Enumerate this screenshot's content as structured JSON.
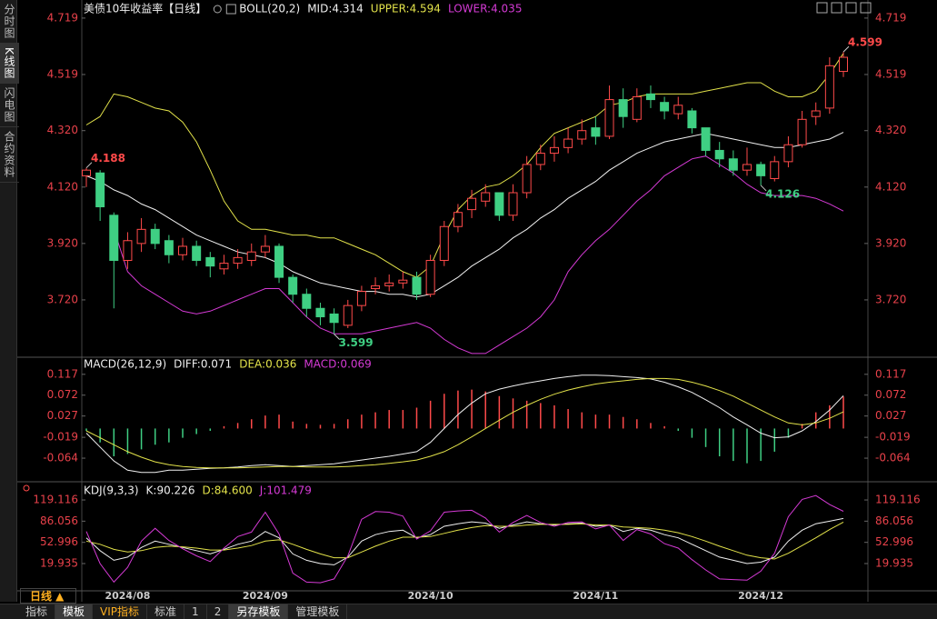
{
  "chart_data": [
    {
      "type": "candlestick",
      "title": "美债10年收益率【日线】",
      "indicator": "BOLL(20,2)",
      "up_color": "#ff4a4a",
      "down_color": "#3fcf83",
      "open": [
        4.16,
        4.17,
        4.02,
        3.86,
        3.92,
        3.97,
        3.93,
        3.88,
        3.91,
        3.87,
        3.83,
        3.85,
        3.86,
        3.89,
        3.91,
        3.8,
        3.74,
        3.69,
        3.67,
        3.63,
        3.7,
        3.76,
        3.77,
        3.78,
        3.8,
        3.74,
        3.86,
        3.98,
        4.04,
        4.07,
        4.1,
        4.02,
        4.1,
        4.2,
        4.24,
        4.26,
        4.29,
        4.33,
        4.3,
        4.43,
        4.36,
        4.45,
        4.42,
        4.38,
        4.39,
        4.33,
        4.25,
        4.22,
        4.18,
        4.2,
        4.15,
        4.21,
        4.27,
        4.37,
        4.4,
        4.53
      ],
      "high": [
        4.188,
        4.18,
        4.03,
        3.96,
        4.01,
        3.99,
        3.95,
        3.94,
        3.93,
        3.89,
        3.88,
        3.9,
        3.92,
        3.95,
        3.92,
        3.81,
        3.76,
        3.71,
        3.69,
        3.72,
        3.77,
        3.8,
        3.81,
        3.82,
        3.82,
        3.88,
        4.0,
        4.06,
        4.11,
        4.13,
        4.1,
        4.13,
        4.23,
        4.27,
        4.3,
        4.33,
        4.36,
        4.37,
        4.48,
        4.47,
        4.47,
        4.48,
        4.44,
        4.44,
        4.4,
        4.33,
        4.28,
        4.25,
        4.26,
        4.21,
        4.23,
        4.3,
        4.39,
        4.42,
        4.58,
        4.599
      ],
      "low": [
        4.12,
        4.0,
        3.69,
        3.83,
        3.89,
        3.9,
        3.85,
        3.86,
        3.84,
        3.8,
        3.81,
        3.83,
        3.84,
        3.87,
        3.78,
        3.71,
        3.66,
        3.63,
        3.599,
        3.62,
        3.68,
        3.74,
        3.75,
        3.76,
        3.72,
        3.73,
        3.84,
        3.96,
        4.01,
        4.05,
        4.0,
        4.0,
        4.08,
        4.18,
        4.21,
        4.24,
        4.27,
        4.27,
        4.29,
        4.33,
        4.35,
        4.4,
        4.36,
        4.36,
        4.31,
        4.23,
        4.19,
        4.16,
        4.16,
        4.126,
        4.14,
        4.19,
        4.26,
        4.34,
        4.38,
        4.51
      ],
      "close": [
        4.18,
        4.05,
        3.86,
        3.93,
        3.97,
        3.92,
        3.88,
        3.91,
        3.86,
        3.84,
        3.85,
        3.87,
        3.89,
        3.91,
        3.8,
        3.74,
        3.69,
        3.66,
        3.64,
        3.7,
        3.75,
        3.77,
        3.78,
        3.79,
        3.74,
        3.86,
        3.98,
        4.03,
        4.08,
        4.1,
        4.02,
        4.1,
        4.2,
        4.24,
        4.26,
        4.29,
        4.32,
        4.3,
        4.43,
        4.37,
        4.44,
        4.43,
        4.39,
        4.41,
        4.33,
        4.25,
        4.22,
        4.18,
        4.2,
        4.16,
        4.21,
        4.27,
        4.36,
        4.39,
        4.55,
        4.58
      ],
      "series": [
        {
          "name": "MID:4.314",
          "color": "#f0f0f0",
          "values": [
            4.16,
            4.14,
            4.11,
            4.09,
            4.06,
            4.04,
            4.01,
            3.98,
            3.95,
            3.93,
            3.91,
            3.89,
            3.88,
            3.87,
            3.85,
            3.82,
            3.8,
            3.78,
            3.77,
            3.76,
            3.75,
            3.75,
            3.74,
            3.74,
            3.73,
            3.74,
            3.77,
            3.8,
            3.84,
            3.87,
            3.9,
            3.94,
            3.97,
            4.01,
            4.04,
            4.08,
            4.11,
            4.14,
            4.18,
            4.21,
            4.24,
            4.26,
            4.28,
            4.29,
            4.3,
            4.31,
            4.3,
            4.29,
            4.28,
            4.27,
            4.26,
            4.26,
            4.27,
            4.28,
            4.29,
            4.314
          ]
        },
        {
          "name": "UPPER:4.594",
          "color": "#e2e24a",
          "values": [
            4.34,
            4.37,
            4.45,
            4.44,
            4.42,
            4.4,
            4.39,
            4.35,
            4.28,
            4.18,
            4.07,
            4.0,
            3.97,
            3.97,
            3.96,
            3.95,
            3.95,
            3.94,
            3.94,
            3.92,
            3.9,
            3.88,
            3.85,
            3.82,
            3.8,
            3.84,
            3.95,
            4.04,
            4.09,
            4.12,
            4.13,
            4.16,
            4.2,
            4.26,
            4.31,
            4.33,
            4.35,
            4.37,
            4.41,
            4.42,
            4.44,
            4.45,
            4.45,
            4.45,
            4.45,
            4.46,
            4.47,
            4.48,
            4.49,
            4.49,
            4.46,
            4.44,
            4.44,
            4.46,
            4.52,
            4.594
          ]
        },
        {
          "name": "LOWER:4.035",
          "color": "#d53ad5",
          "values": [
            null,
            null,
            3.97,
            3.82,
            3.77,
            3.74,
            3.71,
            3.68,
            3.67,
            3.68,
            3.7,
            3.72,
            3.74,
            3.76,
            3.76,
            3.71,
            3.66,
            3.62,
            3.6,
            3.6,
            3.6,
            3.61,
            3.62,
            3.63,
            3.64,
            3.62,
            3.58,
            3.55,
            3.53,
            3.53,
            3.56,
            3.59,
            3.62,
            3.66,
            3.72,
            3.82,
            3.88,
            3.93,
            3.97,
            4.02,
            4.07,
            4.11,
            4.16,
            4.19,
            4.22,
            4.23,
            4.2,
            4.17,
            4.13,
            4.1,
            4.09,
            4.09,
            4.09,
            4.08,
            4.06,
            4.035
          ]
        }
      ],
      "annotations": [
        {
          "label": "4.188",
          "value": 4.188
        },
        {
          "label": "4.599",
          "value": 4.599
        },
        {
          "label": "3.599",
          "value": 3.599
        },
        {
          "label": "4.126",
          "value": 4.126
        }
      ],
      "ylim": [
        3.52,
        4.767
      ],
      "yticks": [
        {
          "value": 3.72,
          "label": "3.720"
        },
        {
          "value": 3.92,
          "label": "3.920"
        },
        {
          "value": 4.12,
          "label": "4.120"
        },
        {
          "value": 4.32,
          "label": "4.320"
        },
        {
          "value": 4.519,
          "label": "4.519"
        },
        {
          "value": 4.719,
          "label": "4.719"
        }
      ]
    },
    {
      "type": "combo",
      "title": "MACD(26,12,9)",
      "series": [
        {
          "name": "DIFF:0.071",
          "color": "#f0f0f0",
          "values": [
            -0.01,
            -0.04,
            -0.07,
            -0.09,
            -0.095,
            -0.095,
            -0.09,
            -0.09,
            -0.088,
            -0.086,
            -0.085,
            -0.083,
            -0.08,
            -0.078,
            -0.08,
            -0.082,
            -0.08,
            -0.078,
            -0.076,
            -0.072,
            -0.068,
            -0.064,
            -0.06,
            -0.055,
            -0.05,
            -0.03,
            0.0,
            0.03,
            0.055,
            0.075,
            0.085,
            0.092,
            0.098,
            0.103,
            0.108,
            0.112,
            0.115,
            0.115,
            0.114,
            0.112,
            0.11,
            0.107,
            0.1,
            0.09,
            0.078,
            0.062,
            0.045,
            0.025,
            0.008,
            -0.01,
            -0.02,
            -0.018,
            -0.005,
            0.015,
            0.04,
            0.071
          ]
        },
        {
          "name": "DEA:0.036",
          "color": "#e2e24a",
          "values": [
            -0.005,
            -0.02,
            -0.035,
            -0.05,
            -0.062,
            -0.072,
            -0.078,
            -0.082,
            -0.084,
            -0.085,
            -0.085,
            -0.085,
            -0.084,
            -0.083,
            -0.082,
            -0.082,
            -0.083,
            -0.083,
            -0.083,
            -0.082,
            -0.08,
            -0.078,
            -0.075,
            -0.072,
            -0.068,
            -0.06,
            -0.05,
            -0.035,
            -0.018,
            0.0,
            0.018,
            0.035,
            0.05,
            0.063,
            0.074,
            0.083,
            0.09,
            0.096,
            0.1,
            0.103,
            0.106,
            0.108,
            0.108,
            0.106,
            0.1,
            0.092,
            0.082,
            0.07,
            0.055,
            0.04,
            0.025,
            0.012,
            0.008,
            0.012,
            0.022,
            0.036
          ]
        },
        {
          "name": "MACD:0.069",
          "type": "bar",
          "color": "#ff4a4a",
          "negative_color": "#3fcf83",
          "legend_color": "#d53ad5",
          "values": [
            -0.005,
            -0.03,
            -0.06,
            -0.055,
            -0.045,
            -0.035,
            -0.03,
            -0.02,
            -0.012,
            -0.005,
            0.005,
            0.012,
            0.02,
            0.028,
            0.03,
            0.015,
            0.01,
            0.008,
            0.01,
            0.02,
            0.03,
            0.035,
            0.04,
            0.04,
            0.045,
            0.06,
            0.075,
            0.082,
            0.084,
            0.08,
            0.07,
            0.065,
            0.06,
            0.055,
            0.05,
            0.042,
            0.035,
            0.03,
            0.03,
            0.025,
            0.02,
            0.012,
            0.005,
            -0.005,
            -0.02,
            -0.04,
            -0.06,
            -0.07,
            -0.075,
            -0.07,
            -0.05,
            -0.02,
            0.01,
            0.035,
            0.05,
            0.069
          ]
        }
      ],
      "ylim": [
        -0.111,
        0.15
      ],
      "yticks": [
        {
          "value": -0.064,
          "label": "-0.064"
        },
        {
          "value": -0.019,
          "label": "-0.019"
        },
        0.027,
        0.072,
        0.117
      ]
    },
    {
      "type": "line",
      "title": "KDJ(9,3,3)",
      "categories": [
        null,
        null,
        null,
        "2024/08",
        null,
        null,
        null,
        null,
        null,
        null,
        null,
        null,
        null,
        "2024/09",
        null,
        null,
        null,
        null,
        null,
        null,
        null,
        null,
        null,
        null,
        null,
        "2024/10",
        null,
        null,
        null,
        null,
        null,
        null,
        null,
        null,
        null,
        null,
        null,
        "2024/11",
        null,
        null,
        null,
        null,
        null,
        null,
        null,
        null,
        null,
        null,
        null,
        "2024/12",
        null,
        null,
        null,
        null,
        null,
        null
      ],
      "series": [
        {
          "name": "K:90.226",
          "color": "#f0f0f0",
          "values": [
            60,
            40,
            25,
            30,
            45,
            55,
            50,
            45,
            40,
            35,
            42,
            50,
            55,
            70,
            60,
            35,
            25,
            20,
            18,
            30,
            55,
            65,
            70,
            72,
            60,
            65,
            78,
            82,
            85,
            83,
            75,
            80,
            85,
            82,
            80,
            82,
            83,
            78,
            80,
            70,
            75,
            72,
            65,
            60,
            50,
            40,
            30,
            25,
            20,
            22,
            30,
            55,
            72,
            82,
            86,
            90.226
          ]
        },
        {
          "name": "D:84.600",
          "color": "#e2e24a",
          "values": [
            55,
            50,
            42,
            38,
            40,
            45,
            47,
            46,
            44,
            41,
            41,
            44,
            48,
            55,
            57,
            50,
            42,
            35,
            29,
            29,
            38,
            47,
            55,
            61,
            61,
            62,
            67,
            72,
            76,
            79,
            78,
            78,
            80,
            81,
            81,
            81,
            82,
            80,
            80,
            77,
            76,
            75,
            72,
            68,
            62,
            55,
            47,
            40,
            33,
            29,
            27,
            36,
            48,
            60,
            73,
            84.6
          ]
        },
        {
          "name": "J:101.479",
          "color": "#d53ad5",
          "values": [
            70,
            20,
            -9,
            14,
            55,
            75,
            56,
            43,
            32,
            23,
            44,
            62,
            69,
            100,
            66,
            5,
            -9,
            -10,
            -4,
            32,
            89,
            101,
            100,
            94,
            58,
            71,
            100,
            102,
            103,
            91,
            69,
            84,
            95,
            84,
            78,
            84,
            85,
            74,
            80,
            56,
            73,
            66,
            51,
            44,
            26,
            10,
            -4,
            -5,
            -6,
            8,
            36,
            93,
            120,
            126,
            112,
            101.479
          ]
        }
      ],
      "ylim": [
        -22.6,
        146.1
      ],
      "yticks": [
        19.935,
        52.996,
        86.056,
        119.116
      ]
    }
  ],
  "ui": {
    "side_tabs": [
      "分时图",
      "K线图",
      "闪电图",
      "合约资料"
    ],
    "period": "日线 ▲",
    "bottom_tabs": [
      "指标",
      "模板",
      "VIP指标",
      "标准",
      "1",
      "2",
      "另存模板",
      "管理模板"
    ]
  }
}
